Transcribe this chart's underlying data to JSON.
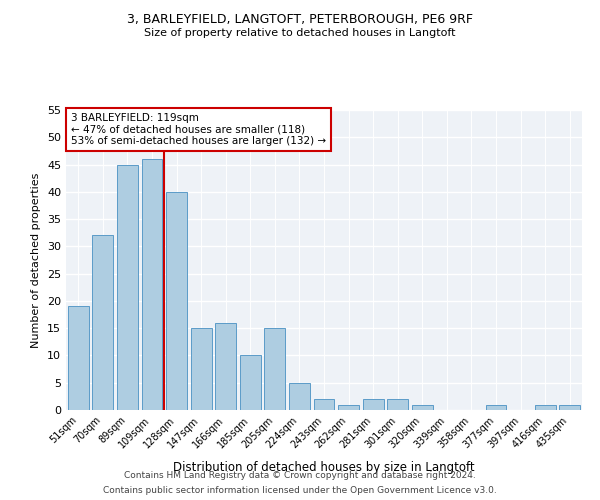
{
  "title_line1": "3, BARLEYFIELD, LANGTOFT, PETERBOROUGH, PE6 9RF",
  "title_line2": "Size of property relative to detached houses in Langtoft",
  "xlabel": "Distribution of detached houses by size in Langtoft",
  "ylabel": "Number of detached properties",
  "categories": [
    "51sqm",
    "70sqm",
    "89sqm",
    "109sqm",
    "128sqm",
    "147sqm",
    "166sqm",
    "185sqm",
    "205sqm",
    "224sqm",
    "243sqm",
    "262sqm",
    "281sqm",
    "301sqm",
    "320sqm",
    "339sqm",
    "358sqm",
    "377sqm",
    "397sqm",
    "416sqm",
    "435sqm"
  ],
  "values": [
    19,
    32,
    45,
    46,
    40,
    15,
    16,
    10,
    15,
    5,
    2,
    1,
    2,
    2,
    1,
    0,
    0,
    1,
    0,
    1,
    1
  ],
  "bar_color": "#aecde1",
  "bar_edge_color": "#5b9bc8",
  "vline_x_index": 3.5,
  "vline_color": "#cc0000",
  "ylim": [
    0,
    55
  ],
  "yticks": [
    0,
    5,
    10,
    15,
    20,
    25,
    30,
    35,
    40,
    45,
    50,
    55
  ],
  "annotation_text": "3 BARLEYFIELD: 119sqm\n← 47% of detached houses are smaller (118)\n53% of semi-detached houses are larger (132) →",
  "annotation_box_color": "#cc0000",
  "background_color": "#eef2f7",
  "footer_line1": "Contains HM Land Registry data © Crown copyright and database right 2024.",
  "footer_line2": "Contains public sector information licensed under the Open Government Licence v3.0."
}
